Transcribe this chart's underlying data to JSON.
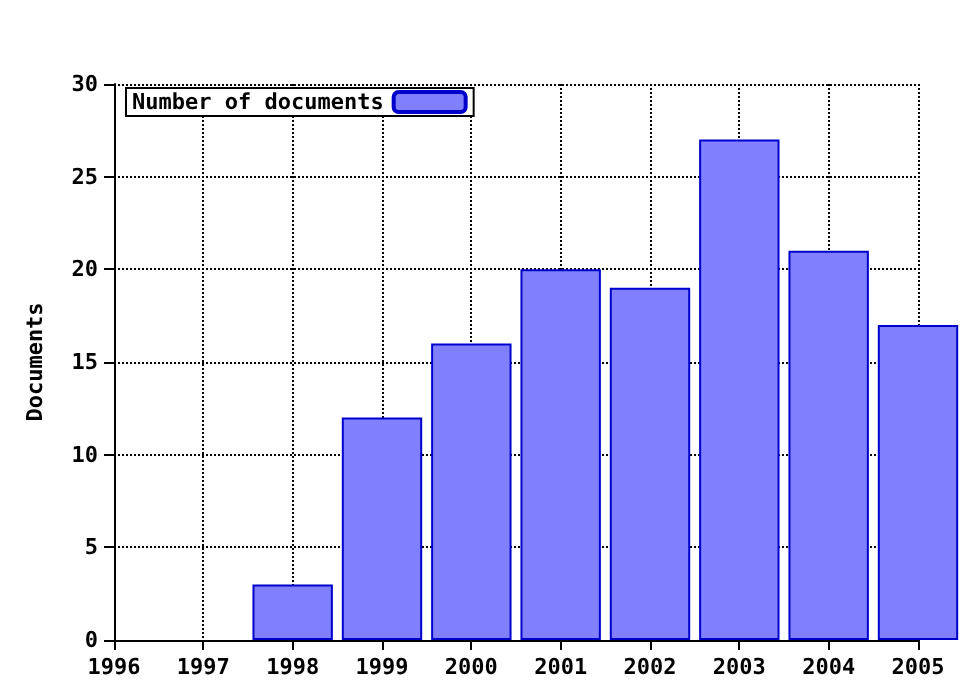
{
  "chart_data": {
    "type": "bar",
    "ylabel": "Documents",
    "x": [
      1998,
      1999,
      2000,
      2001,
      2002,
      2003,
      2004,
      2005
    ],
    "series": [
      {
        "name": "Number of documents",
        "color": "#8080ff",
        "values": [
          3,
          12,
          16,
          20,
          19,
          27,
          21,
          17
        ]
      }
    ],
    "xlim": [
      1996,
      2005
    ],
    "xticks": [
      1996,
      1997,
      1998,
      1999,
      2000,
      2001,
      2002,
      2003,
      2004,
      2005
    ],
    "ylim": [
      0,
      30
    ],
    "yticks": [
      0,
      5,
      10,
      15,
      20,
      25,
      30
    ],
    "grid": true,
    "legend": "top left",
    "line_style": "dotted"
  }
}
